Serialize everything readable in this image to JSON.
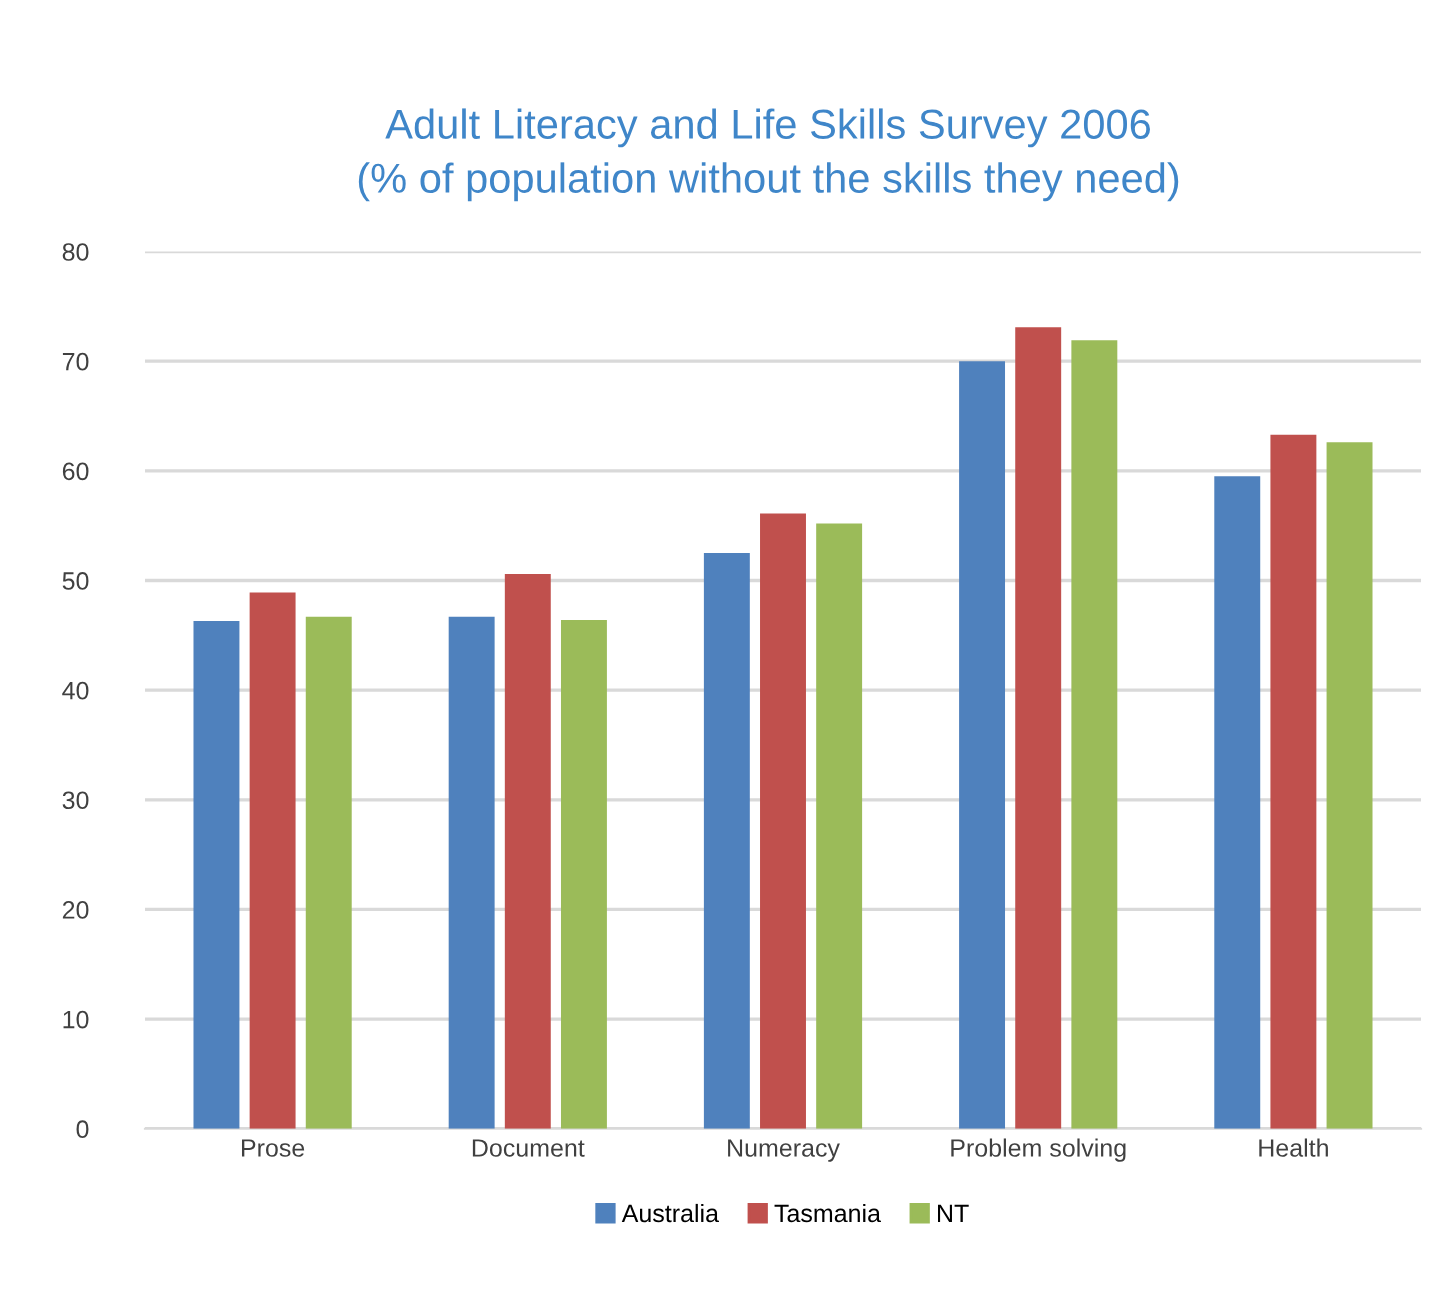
{
  "chart_data": {
    "type": "bar",
    "title": "Adult Literacy and Life Skills Survey 2006\n(% of population without the skills they need)",
    "categories": [
      "Prose",
      "Document",
      "Numeracy",
      "Problem solving",
      "Health"
    ],
    "series": [
      {
        "name": "Australia",
        "color": "#4f81bd",
        "values": [
          46.3,
          46.7,
          52.5,
          70.0,
          59.5
        ]
      },
      {
        "name": "Tasmania",
        "color": "#c0504d",
        "values": [
          48.9,
          50.6,
          56.1,
          73.1,
          63.3
        ]
      },
      {
        "name": "NT",
        "color": "#9bbb59",
        "values": [
          46.7,
          46.4,
          55.2,
          71.9,
          62.6
        ]
      }
    ],
    "ylim": [
      0,
      80
    ],
    "yticks": [
      0,
      10,
      20,
      30,
      40,
      50,
      60,
      70,
      80
    ],
    "grid": "y",
    "legend": "bottom"
  }
}
